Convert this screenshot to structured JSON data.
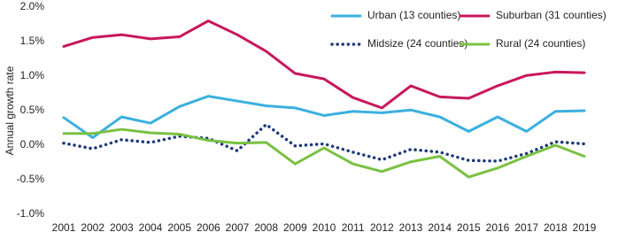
{
  "chart_data": {
    "type": "line",
    "y_label": "Annual growth rate",
    "categories": [
      "2001",
      "2002",
      "2003",
      "2004",
      "2005",
      "2006",
      "2007",
      "2008",
      "2009",
      "2010",
      "2011",
      "2012",
      "2013",
      "2014",
      "2015",
      "2016",
      "2017",
      "2018",
      "2019"
    ],
    "series": [
      {
        "name": "Urban (13 counties)",
        "color": "#3bb0e0",
        "style": "solid",
        "values": [
          0.4,
          0.11,
          0.41,
          0.32,
          0.56,
          0.71,
          0.64,
          0.57,
          0.54,
          0.43,
          0.49,
          0.47,
          0.51,
          0.41,
          0.2,
          0.41,
          0.2,
          0.49,
          0.5
        ]
      },
      {
        "name": "Suburban (31 counties)",
        "color": "#c8175d",
        "style": "solid",
        "values": [
          1.43,
          1.56,
          1.6,
          1.54,
          1.57,
          1.8,
          1.6,
          1.36,
          1.04,
          0.96,
          0.69,
          0.54,
          0.86,
          0.7,
          0.68,
          0.86,
          1.01,
          1.06,
          1.05
        ]
      },
      {
        "name": "Midsize (24 counties)",
        "color": "#1f3a7a",
        "style": "dotted",
        "values": [
          0.03,
          -0.05,
          0.08,
          0.04,
          0.13,
          0.1,
          -0.08,
          0.3,
          -0.01,
          0.02,
          -0.1,
          -0.21,
          -0.06,
          -0.1,
          -0.22,
          -0.23,
          -0.12,
          0.05,
          0.02
        ]
      },
      {
        "name": "Rural (24 counties)",
        "color": "#7ac143",
        "style": "solid",
        "values": [
          0.17,
          0.17,
          0.23,
          0.18,
          0.16,
          0.07,
          0.03,
          0.04,
          -0.27,
          -0.04,
          -0.27,
          -0.38,
          -0.24,
          -0.16,
          -0.46,
          -0.33,
          -0.16,
          0.0,
          -0.16
        ]
      }
    ],
    "ylim": [
      -1.0,
      2.0
    ],
    "yticks": [
      {
        "value": -1.0,
        "label": "-1.0%"
      },
      {
        "value": -0.5,
        "label": "-0.5%"
      },
      {
        "value": 0,
        "label": "0.0%"
      },
      {
        "value": 0.5,
        "label": "0.5%"
      },
      {
        "value": 1.0,
        "label": "1.0%"
      },
      {
        "value": 1.5,
        "label": "1.5%"
      },
      {
        "value": 2.0,
        "label": "2.0%"
      }
    ],
    "grid": false
  }
}
